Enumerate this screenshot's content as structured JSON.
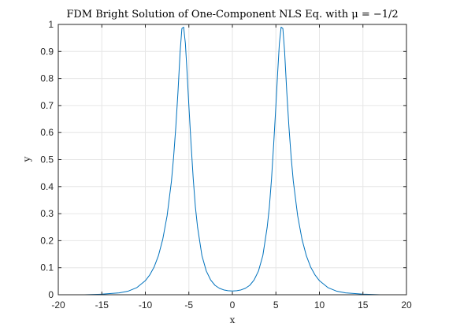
{
  "chart_data": {
    "type": "line",
    "title": "FDM Bright Solution of One-Component NLS Eq. with μ = −1/2",
    "xlabel": "x",
    "ylabel": "y",
    "xlim": [
      -20,
      20
    ],
    "ylim": [
      0,
      1
    ],
    "grid": true,
    "x_ticks": [
      -20,
      -15,
      -10,
      -5,
      0,
      5,
      10,
      15,
      20
    ],
    "y_ticks": [
      0,
      0.1,
      0.2,
      0.3,
      0.4,
      0.5,
      0.6,
      0.7,
      0.8,
      0.9,
      1
    ],
    "x_tick_labels": [
      "-20",
      "-15",
      "-10",
      "-5",
      "0",
      "5",
      "10",
      "15",
      "20"
    ],
    "y_tick_labels": [
      "0",
      "0.1",
      "0.2",
      "0.3",
      "0.4",
      "0.5",
      "0.6",
      "0.7",
      "0.8",
      "0.9",
      "1"
    ],
    "series": [
      {
        "color": "#0072bd",
        "x": [
          -20,
          -17,
          -15,
          -13,
          -12,
          -11,
          -10,
          -9.5,
          -9,
          -8.5,
          -8,
          -7.5,
          -7,
          -6.75,
          -6.5,
          -6.25,
          -6,
          -5.8,
          -5.6,
          -5.4,
          -5.2,
          -5,
          -4.75,
          -4.5,
          -4.25,
          -4,
          -3.5,
          -3,
          -2.5,
          -2,
          -1.5,
          -1,
          -0.5,
          0,
          0.5,
          1,
          1.5,
          2,
          2.5,
          3,
          3.5,
          4,
          4.25,
          4.5,
          4.75,
          5,
          5.2,
          5.4,
          5.6,
          5.8,
          6,
          6.25,
          6.5,
          6.75,
          7,
          7.5,
          8,
          8.5,
          9,
          9.5,
          10,
          11,
          12,
          13,
          15,
          17,
          20
        ],
        "y": [
          0.0,
          0.0,
          0.002,
          0.007,
          0.013,
          0.026,
          0.052,
          0.073,
          0.102,
          0.144,
          0.205,
          0.292,
          0.42,
          0.51,
          0.62,
          0.75,
          0.9,
          0.985,
          0.99,
          0.93,
          0.82,
          0.7,
          0.56,
          0.43,
          0.325,
          0.25,
          0.145,
          0.088,
          0.055,
          0.035,
          0.024,
          0.018,
          0.015,
          0.014,
          0.015,
          0.018,
          0.024,
          0.035,
          0.055,
          0.088,
          0.145,
          0.25,
          0.325,
          0.43,
          0.56,
          0.7,
          0.82,
          0.93,
          0.99,
          0.985,
          0.9,
          0.75,
          0.62,
          0.51,
          0.42,
          0.292,
          0.205,
          0.144,
          0.102,
          0.073,
          0.052,
          0.026,
          0.013,
          0.007,
          0.002,
          0.0,
          0.0
        ]
      }
    ]
  }
}
